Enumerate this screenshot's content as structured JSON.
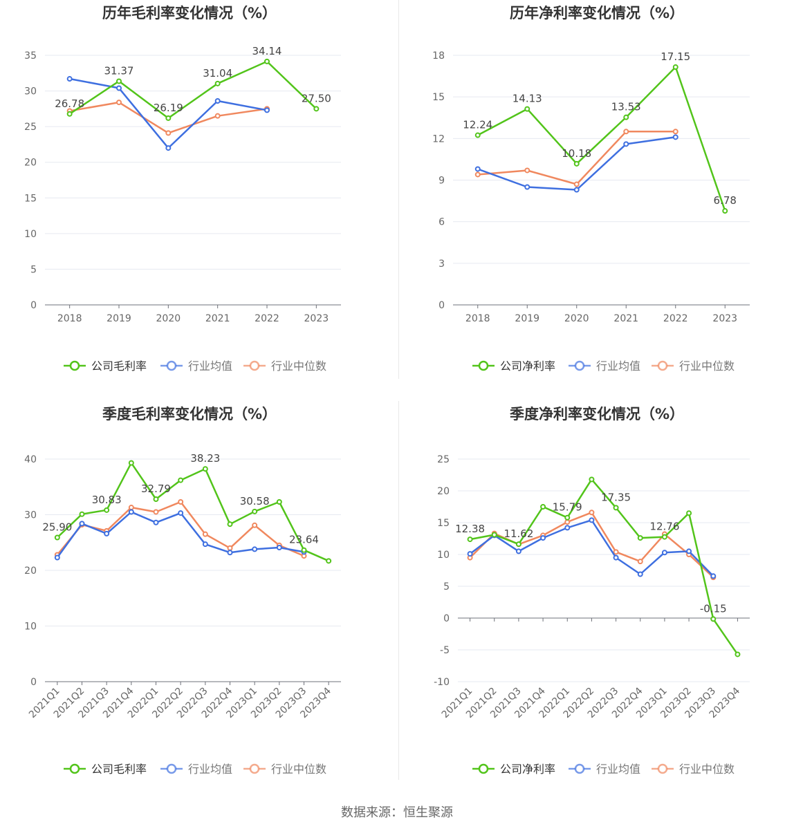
{
  "colors": {
    "company": "#52c41a",
    "avg": "#3e6fe0",
    "median": "#f0885e"
  },
  "source": "数据来源：恒生聚源",
  "chart_data": [
    {
      "type": "line",
      "title": "历年毛利率变化情况（%）",
      "categories": [
        "2018",
        "2019",
        "2020",
        "2021",
        "2022",
        "2023"
      ],
      "ylim": [
        0,
        35
      ],
      "yticks": [
        0,
        5,
        10,
        15,
        20,
        25,
        30,
        35
      ],
      "grid": true,
      "legend": "bottom",
      "series": [
        {
          "name": "公司毛利率",
          "values": [
            26.78,
            31.37,
            26.19,
            31.04,
            34.14,
            27.5
          ],
          "labels": [
            "26.78",
            "31.37",
            "26.19",
            "31.04",
            "34.14",
            "27.50"
          ]
        },
        {
          "name": "行业均值",
          "values": [
            31.7,
            30.4,
            22.0,
            28.6,
            27.3,
            null
          ]
        },
        {
          "name": "行业中位数",
          "values": [
            27.2,
            28.4,
            24.1,
            26.5,
            27.5,
            null
          ]
        }
      ]
    },
    {
      "type": "line",
      "title": "历年净利率变化情况（%）",
      "categories": [
        "2018",
        "2019",
        "2020",
        "2021",
        "2022",
        "2023"
      ],
      "ylim": [
        0,
        18
      ],
      "yticks": [
        0,
        3,
        6,
        9,
        12,
        15,
        18
      ],
      "grid": true,
      "legend": "bottom",
      "series": [
        {
          "name": "公司净利率",
          "values": [
            12.24,
            14.13,
            10.18,
            13.53,
            17.15,
            6.78
          ],
          "labels": [
            "12.24",
            "14.13",
            "10.18",
            "13.53",
            "17.15",
            "6.78"
          ]
        },
        {
          "name": "行业均值",
          "values": [
            9.8,
            8.5,
            8.3,
            11.6,
            12.1,
            null
          ]
        },
        {
          "name": "行业中位数",
          "values": [
            9.4,
            9.7,
            8.7,
            12.5,
            12.5,
            null
          ]
        }
      ]
    },
    {
      "type": "line",
      "title": "季度毛利率变化情况（%）",
      "categories": [
        "2021Q1",
        "2021Q2",
        "2021Q3",
        "2021Q4",
        "2022Q1",
        "2022Q2",
        "2022Q3",
        "2022Q4",
        "2023Q1",
        "2023Q2",
        "2023Q3",
        "2023Q4"
      ],
      "ylim": [
        0,
        40
      ],
      "yticks": [
        0,
        10,
        20,
        30,
        40
      ],
      "grid": true,
      "legend": "bottom",
      "series": [
        {
          "name": "公司毛利率",
          "values": [
            25.9,
            30.1,
            30.83,
            39.3,
            32.79,
            36.2,
            38.23,
            28.3,
            30.58,
            32.3,
            23.64,
            21.7
          ],
          "labels": [
            "25.90",
            "",
            "30.83",
            "",
            "32.79",
            "",
            "38.23",
            "",
            "30.58",
            "",
            "23.64",
            ""
          ]
        },
        {
          "name": "行业均值",
          "values": [
            22.3,
            28.4,
            26.6,
            30.5,
            28.6,
            30.3,
            24.7,
            23.2,
            23.8,
            24.1,
            23.3,
            null
          ]
        },
        {
          "name": "行业中位数",
          "values": [
            22.8,
            28.2,
            27.1,
            31.3,
            30.5,
            32.3,
            26.5,
            24.0,
            28.1,
            24.5,
            22.6,
            null
          ]
        }
      ]
    },
    {
      "type": "line",
      "title": "季度净利率变化情况（%）",
      "categories": [
        "2021Q1",
        "2021Q2",
        "2021Q3",
        "2021Q4",
        "2022Q1",
        "2022Q2",
        "2022Q3",
        "2022Q4",
        "2023Q1",
        "2023Q2",
        "2023Q3",
        "2023Q4"
      ],
      "ylim": [
        -10,
        25
      ],
      "yticks": [
        -10,
        -5,
        0,
        5,
        10,
        15,
        20,
        25
      ],
      "grid": true,
      "legend": "bottom",
      "series": [
        {
          "name": "公司净利率",
          "values": [
            12.38,
            13.1,
            11.62,
            17.5,
            15.79,
            21.8,
            17.35,
            12.6,
            12.76,
            16.5,
            -0.15,
            -5.7
          ],
          "labels": [
            "12.38",
            "",
            "11.62",
            "",
            "15.79",
            "",
            "17.35",
            "",
            "12.76",
            "",
            "-0.15",
            ""
          ]
        },
        {
          "name": "行业均值",
          "values": [
            10.1,
            13.0,
            10.5,
            12.6,
            14.2,
            15.4,
            9.5,
            6.9,
            10.3,
            10.5,
            6.6,
            null
          ]
        },
        {
          "name": "行业中位数",
          "values": [
            9.5,
            13.3,
            11.6,
            13.0,
            15.1,
            16.6,
            10.4,
            8.9,
            13.2,
            10.0,
            6.4,
            null
          ]
        }
      ]
    }
  ]
}
